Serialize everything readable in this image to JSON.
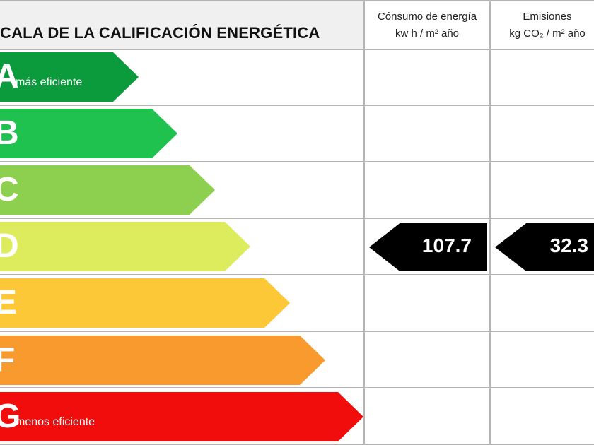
{
  "header": {
    "title": "CALA DE LA CALIFICACIÓN ENERGÉTICA",
    "consumo_line1": "Cónsumo de energía",
    "consumo_line2": "kw h / m² año",
    "emisiones_line1": "Emisiones",
    "emisiones_line2": "kg CO₂ / m² año"
  },
  "ratings": [
    {
      "letter": "A",
      "note": "más eficiente",
      "color": "#0b9a3c"
    },
    {
      "letter": "B",
      "note": "",
      "color": "#1fc24f"
    },
    {
      "letter": "C",
      "note": "",
      "color": "#8dcf4e"
    },
    {
      "letter": "D",
      "note": "",
      "color": "#dcec5c"
    },
    {
      "letter": "E",
      "note": "",
      "color": "#fcc837"
    },
    {
      "letter": "F",
      "note": "",
      "color": "#f99a2e"
    },
    {
      "letter": "G",
      "note": "menos eficiente",
      "color": "#f20d0d"
    }
  ],
  "current": {
    "rating": "D",
    "consumo": "107.7",
    "emisiones": "32.3"
  }
}
